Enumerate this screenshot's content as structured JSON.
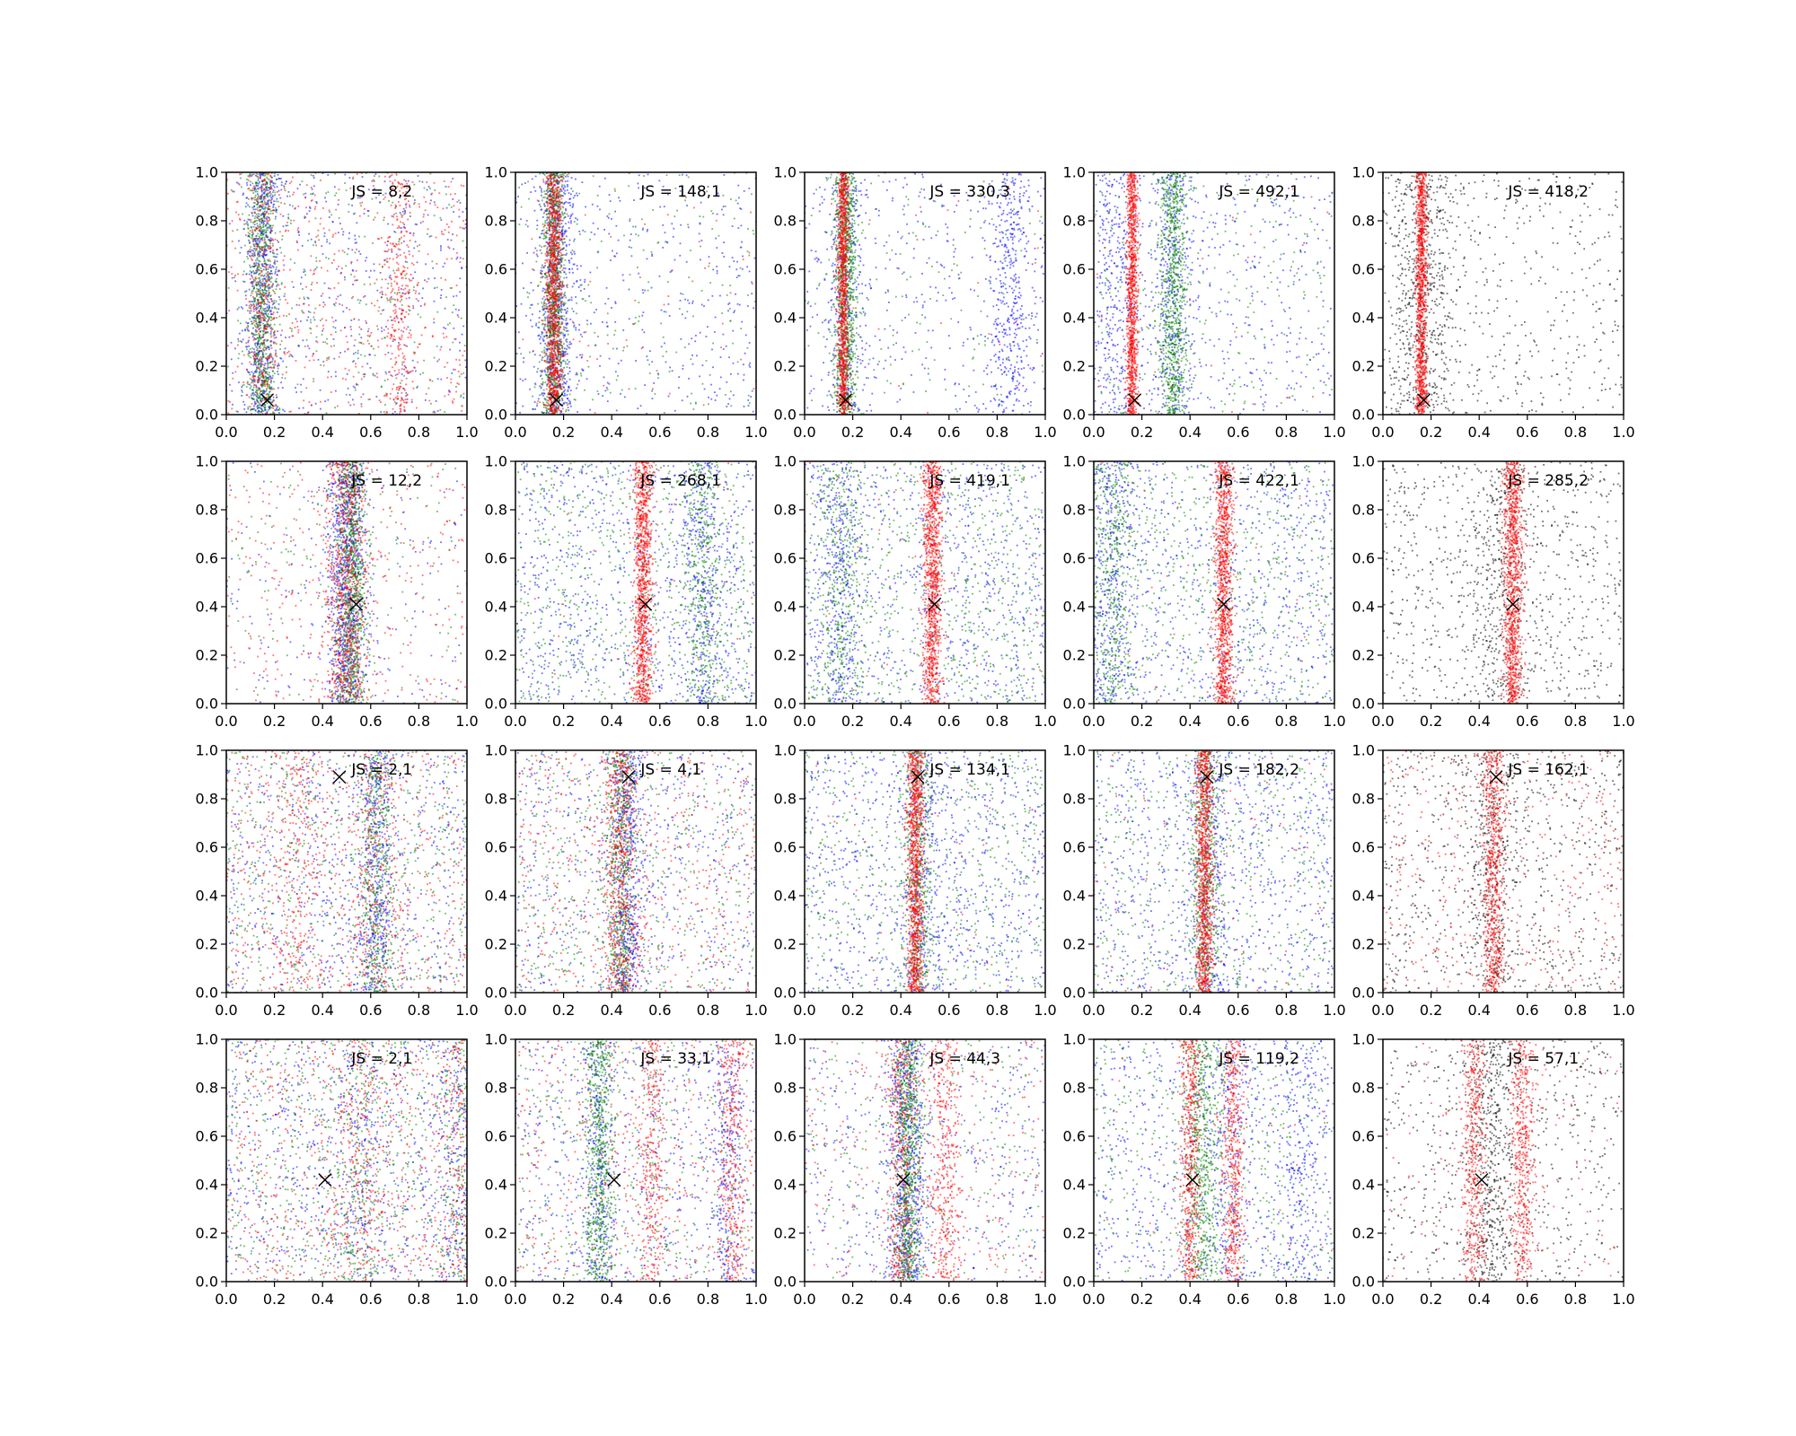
{
  "chart_data": {
    "type": "scatter",
    "layout": {
      "rows": 4,
      "cols": 5
    },
    "xlim": [
      0,
      1
    ],
    "ylim": [
      0,
      1
    ],
    "x_ticks": [
      "0.0",
      "0.2",
      "0.4",
      "0.6",
      "0.8",
      "1.0"
    ],
    "y_ticks": [
      "0.0",
      "0.2",
      "0.4",
      "0.6",
      "0.8",
      "1.0"
    ],
    "grid": false,
    "series_colors": {
      "blue": "#0000ff",
      "green": "#008000",
      "red": "#ff0000",
      "black": "#000000"
    },
    "panels": [
      {
        "annotation": "JS = 8,2",
        "marker": [
          0.17,
          0.06
        ],
        "series": [
          {
            "color": "blue",
            "band_centers": [
              0.15
            ],
            "band_width": 0.035,
            "bg": 0.45
          },
          {
            "color": "green",
            "band_centers": [
              0.15
            ],
            "band_width": 0.03,
            "bg": 0.3
          },
          {
            "color": "red",
            "band_centers": [
              0.15,
              0.72
            ],
            "band_width": 0.03,
            "bg": 0.45
          }
        ]
      },
      {
        "annotation": "JS = 148,1",
        "marker": [
          0.17,
          0.06
        ],
        "series": [
          {
            "color": "blue",
            "band_centers": [
              0.17
            ],
            "band_width": 0.04,
            "bg": 0.35
          },
          {
            "color": "green",
            "band_centers": [
              0.16
            ],
            "band_width": 0.025,
            "bg": 0.2
          },
          {
            "color": "red",
            "band_centers": [
              0.16
            ],
            "band_width": 0.018,
            "bg": 0.05
          }
        ]
      },
      {
        "annotation": "JS = 330,3",
        "marker": [
          0.17,
          0.06
        ],
        "series": [
          {
            "color": "blue",
            "band_centers": [
              0.17,
              0.85
            ],
            "band_width": 0.045,
            "bg": 0.35
          },
          {
            "color": "green",
            "band_centers": [
              0.17
            ],
            "band_width": 0.025,
            "bg": 0.15
          },
          {
            "color": "red",
            "band_centers": [
              0.16
            ],
            "band_width": 0.012,
            "bg": 0.02
          }
        ]
      },
      {
        "annotation": "JS = 492,1",
        "marker": [
          0.17,
          0.06
        ],
        "series": [
          {
            "color": "blue",
            "band_centers": [
              0.08,
              0.33
            ],
            "band_width": 0.05,
            "bg": 0.4
          },
          {
            "color": "green",
            "band_centers": [
              0.33
            ],
            "band_width": 0.03,
            "bg": 0.25
          },
          {
            "color": "red",
            "band_centers": [
              0.16
            ],
            "band_width": 0.012,
            "bg": 0.02
          }
        ]
      },
      {
        "annotation": "JS = 418,2",
        "marker": [
          0.17,
          0.06
        ],
        "series": [
          {
            "color": "black",
            "band_centers": [
              0.17
            ],
            "band_width": 0.07,
            "bg": 0.45
          },
          {
            "color": "red",
            "band_centers": [
              0.16
            ],
            "band_width": 0.012,
            "bg": 0.0
          }
        ]
      },
      {
        "annotation": "JS = 12,2",
        "marker": [
          0.54,
          0.41
        ],
        "series": [
          {
            "color": "blue",
            "band_centers": [
              0.5
            ],
            "band_width": 0.04,
            "bg": 0.15
          },
          {
            "color": "green",
            "band_centers": [
              0.52
            ],
            "band_width": 0.035,
            "bg": 0.15
          },
          {
            "color": "red",
            "band_centers": [
              0.5
            ],
            "band_width": 0.045,
            "bg": 0.3
          }
        ]
      },
      {
        "annotation": "JS = 268,1",
        "marker": [
          0.54,
          0.41
        ],
        "series": [
          {
            "color": "blue",
            "band_centers": [
              0.78
            ],
            "band_width": 0.04,
            "bg": 0.75
          },
          {
            "color": "green",
            "band_centers": [
              0.78
            ],
            "band_width": 0.04,
            "bg": 0.7
          },
          {
            "color": "red",
            "band_centers": [
              0.53
            ],
            "band_width": 0.02,
            "bg": 0.02
          }
        ]
      },
      {
        "annotation": "JS = 419,1",
        "marker": [
          0.54,
          0.41
        ],
        "series": [
          {
            "color": "blue",
            "band_centers": [
              0.15
            ],
            "band_width": 0.05,
            "bg": 0.7
          },
          {
            "color": "green",
            "band_centers": [
              0.15
            ],
            "band_width": 0.05,
            "bg": 0.7
          },
          {
            "color": "red",
            "band_centers": [
              0.53
            ],
            "band_width": 0.02,
            "bg": 0.02
          }
        ]
      },
      {
        "annotation": "JS = 422,1",
        "marker": [
          0.54,
          0.41
        ],
        "series": [
          {
            "color": "blue",
            "band_centers": [
              0.08
            ],
            "band_width": 0.05,
            "bg": 0.7
          },
          {
            "color": "green",
            "band_centers": [
              0.08
            ],
            "band_width": 0.05,
            "bg": 0.6
          },
          {
            "color": "red",
            "band_centers": [
              0.54
            ],
            "band_width": 0.02,
            "bg": 0.02
          }
        ]
      },
      {
        "annotation": "JS = 285,2",
        "marker": [
          0.54,
          0.41
        ],
        "series": [
          {
            "color": "black",
            "band_centers": [
              0.48
            ],
            "band_width": 0.06,
            "bg": 0.7
          },
          {
            "color": "red",
            "band_centers": [
              0.54
            ],
            "band_width": 0.02,
            "bg": 0.0
          }
        ]
      },
      {
        "annotation": "JS = 2,1",
        "marker": [
          0.47,
          0.89
        ],
        "series": [
          {
            "color": "blue",
            "band_centers": [
              0.62
            ],
            "band_width": 0.04,
            "bg": 0.6
          },
          {
            "color": "green",
            "band_centers": [
              0.62
            ],
            "band_width": 0.04,
            "bg": 0.6
          },
          {
            "color": "red",
            "band_centers": [
              0.3,
              0.62
            ],
            "band_width": 0.05,
            "bg": 0.6
          }
        ]
      },
      {
        "annotation": "JS = 4,1",
        "marker": [
          0.47,
          0.89
        ],
        "series": [
          {
            "color": "blue",
            "band_centers": [
              0.46
            ],
            "band_width": 0.035,
            "bg": 0.5
          },
          {
            "color": "green",
            "band_centers": [
              0.44
            ],
            "band_width": 0.03,
            "bg": 0.5
          },
          {
            "color": "red",
            "band_centers": [
              0.44
            ],
            "band_width": 0.035,
            "bg": 0.5
          }
        ]
      },
      {
        "annotation": "JS = 134,1",
        "marker": [
          0.47,
          0.89
        ],
        "series": [
          {
            "color": "blue",
            "band_centers": [
              0.5
            ],
            "band_width": 0.05,
            "bg": 0.75
          },
          {
            "color": "green",
            "band_centers": [
              0.47
            ],
            "band_width": 0.03,
            "bg": 0.6
          },
          {
            "color": "red",
            "band_centers": [
              0.46
            ],
            "band_width": 0.018,
            "bg": 0.05
          }
        ]
      },
      {
        "annotation": "JS = 182,2",
        "marker": [
          0.47,
          0.89
        ],
        "series": [
          {
            "color": "blue",
            "band_centers": [
              0.48
            ],
            "band_width": 0.05,
            "bg": 0.75
          },
          {
            "color": "green",
            "band_centers": [
              0.46
            ],
            "band_width": 0.03,
            "bg": 0.55
          },
          {
            "color": "red",
            "band_centers": [
              0.46
            ],
            "band_width": 0.018,
            "bg": 0.05
          }
        ]
      },
      {
        "annotation": "JS = 162,1",
        "marker": [
          0.47,
          0.89
        ],
        "series": [
          {
            "color": "black",
            "band_centers": [
              0.46
            ],
            "band_width": 0.05,
            "bg": 0.7
          },
          {
            "color": "red",
            "band_centers": [
              0.46
            ],
            "band_width": 0.02,
            "bg": 0.35
          }
        ]
      },
      {
        "annotation": "JS = 2,1",
        "marker": [
          0.41,
          0.42
        ],
        "series": [
          {
            "color": "blue",
            "band_centers": [
              0.55,
              0.98
            ],
            "band_width": 0.05,
            "bg": 0.65
          },
          {
            "color": "green",
            "band_centers": [
              0.55,
              0.98
            ],
            "band_width": 0.05,
            "bg": 0.65
          },
          {
            "color": "red",
            "band_centers": [
              0.55,
              0.98
            ],
            "band_width": 0.05,
            "bg": 0.65
          }
        ]
      },
      {
        "annotation": "JS = 33,1",
        "marker": [
          0.41,
          0.42
        ],
        "series": [
          {
            "color": "blue",
            "band_centers": [
              0.35,
              0.88
            ],
            "band_width": 0.035,
            "bg": 0.5
          },
          {
            "color": "green",
            "band_centers": [
              0.35
            ],
            "band_width": 0.03,
            "bg": 0.4
          },
          {
            "color": "red",
            "band_centers": [
              0.57,
              0.9
            ],
            "band_width": 0.03,
            "bg": 0.4
          }
        ]
      },
      {
        "annotation": "JS = 44,3",
        "marker": [
          0.41,
          0.42
        ],
        "series": [
          {
            "color": "blue",
            "band_centers": [
              0.42
            ],
            "band_width": 0.04,
            "bg": 0.4
          },
          {
            "color": "green",
            "band_centers": [
              0.43
            ],
            "band_width": 0.03,
            "bg": 0.25
          },
          {
            "color": "red",
            "band_centers": [
              0.4,
              0.58
            ],
            "band_width": 0.035,
            "bg": 0.25
          }
        ]
      },
      {
        "annotation": "JS = 119,2",
        "marker": [
          0.41,
          0.42
        ],
        "series": [
          {
            "color": "blue",
            "band_centers": [
              0.57,
              0.85
            ],
            "band_width": 0.05,
            "bg": 0.6
          },
          {
            "color": "green",
            "band_centers": [
              0.45
            ],
            "band_width": 0.04,
            "bg": 0.45
          },
          {
            "color": "red",
            "band_centers": [
              0.4,
              0.58
            ],
            "band_width": 0.022,
            "bg": 0.03
          }
        ]
      },
      {
        "annotation": "JS = 57,1",
        "marker": [
          0.41,
          0.42
        ],
        "series": [
          {
            "color": "black",
            "band_centers": [
              0.45
            ],
            "band_width": 0.05,
            "bg": 0.6
          },
          {
            "color": "red",
            "band_centers": [
              0.38,
              0.58
            ],
            "band_width": 0.025,
            "bg": 0.1
          }
        ]
      }
    ]
  }
}
